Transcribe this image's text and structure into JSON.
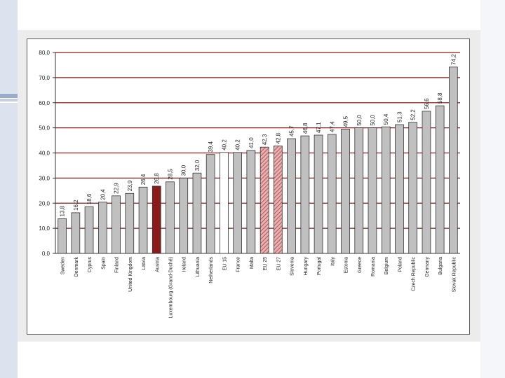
{
  "chart_data": {
    "type": "bar",
    "title": "",
    "xlabel": "",
    "ylabel": "",
    "ylim": [
      0,
      80
    ],
    "yticks": [
      "0,0",
      "10,0",
      "20,0",
      "30,0",
      "40,0",
      "50,0",
      "60,0",
      "70,0",
      "80,0"
    ],
    "grid": true,
    "legend": "none",
    "categories": [
      "Sweden",
      "Denmark",
      "Cyprus",
      "Spain",
      "Finland",
      "United Kingdom",
      "Latvia",
      "Austria",
      "Luxembourg (Grand-Duché)",
      "Ireland",
      "Lithuania",
      "Netherlands",
      "EU 15",
      "France",
      "Malta",
      "EU 25",
      "EU 27",
      "Slovenia",
      "Hungary",
      "Portugal",
      "Italy",
      "Estonia",
      "Greece",
      "Romania",
      "Belgium",
      "Poland",
      "Czech Republic",
      "Germany",
      "Bulgaria",
      "Slovak Republic"
    ],
    "values": [
      13.8,
      16.2,
      18.6,
      20.4,
      22.9,
      23.9,
      26.4,
      26.8,
      28.5,
      30.0,
      32.0,
      39.4,
      40.2,
      40.2,
      41.0,
      42.3,
      42.8,
      45.7,
      46.8,
      47.1,
      47.4,
      49.5,
      50.0,
      50.0,
      50.4,
      51.3,
      52.2,
      56.6,
      58.8,
      74.2
    ],
    "value_labels": [
      "13,8",
      "16,2",
      "18,6",
      "20,4",
      "22,9",
      "23,9",
      "26,4",
      "26,8",
      "28,5",
      "30,0",
      "32,0",
      "39,4",
      "40,2",
      "40,2",
      "41,0",
      "42,3",
      "42,8",
      "45,7",
      "46,8",
      "47,1",
      "47,4",
      "49,5",
      "50,0",
      "50,0",
      "50,4",
      "51,3",
      "52,2",
      "56,6",
      "58,8",
      "74,2"
    ],
    "bar_styles": [
      "gray",
      "gray",
      "gray",
      "gray",
      "gray",
      "gray",
      "gray",
      "highlight",
      "gray",
      "gray",
      "gray",
      "gray",
      "white",
      "gray",
      "gray",
      "hatched",
      "hatched",
      "gray",
      "gray",
      "gray",
      "gray",
      "gray",
      "gray",
      "gray",
      "gray",
      "gray",
      "gray",
      "gray",
      "gray",
      "gray"
    ],
    "colors": {
      "gray": "#c0c0c0",
      "highlight": "#8b1a1a",
      "white": "#ffffff",
      "hatch_fill": "#e8b0b0",
      "hatch_line": "#a04040",
      "gridline": "#8b1a1a",
      "bar_stroke": "#333333",
      "text": "#222222"
    }
  }
}
